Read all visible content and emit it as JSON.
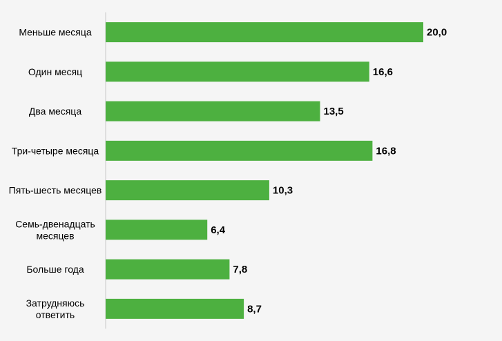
{
  "chart_data": {
    "type": "bar",
    "orientation": "horizontal",
    "categories": [
      "Меньше месяца",
      "Один месяц",
      "Два месяца",
      "Три-четыре месяца",
      "Пять-шесть месяцев",
      "Семь-двенадцать месяцев",
      "Больше года",
      "Затрудняюсь ответить"
    ],
    "category_lines": [
      [
        "Меньше месяца"
      ],
      [
        "Один месяц"
      ],
      [
        "Два месяца"
      ],
      [
        "Три-четыре месяца"
      ],
      [
        "Пять-шесть месяцев"
      ],
      [
        "Семь-двенадцать",
        "месяцев"
      ],
      [
        "Больше года"
      ],
      [
        "Затрудняюсь",
        "ответить"
      ]
    ],
    "values": [
      20.0,
      16.6,
      13.5,
      16.8,
      10.3,
      6.4,
      7.8,
      8.7
    ],
    "value_labels": [
      "20,0",
      "16,6",
      "13,5",
      "16,8",
      "10,3",
      "6,4",
      "7,8",
      "8,7"
    ],
    "xlim": [
      0,
      20
    ],
    "grid": false,
    "legend": "none",
    "colors": {
      "bar": "#4db040",
      "axis": "#c8c8c8",
      "background": "#f5f5f5"
    }
  }
}
